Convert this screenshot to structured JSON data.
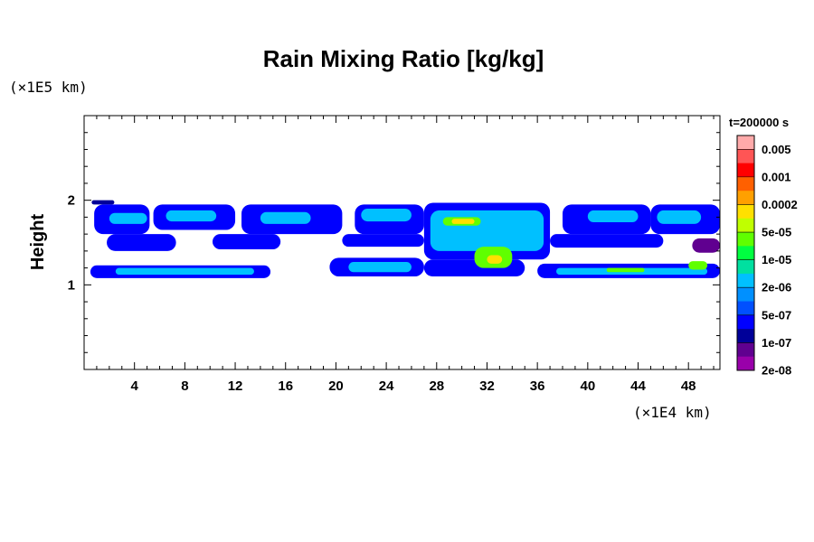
{
  "chart_data": {
    "type": "heatmap",
    "title": "Rain Mixing Ratio [kg/kg]",
    "ylabel": "Height",
    "x_unit": "(×1E4 km)",
    "y_unit": "(×1E5 km)",
    "time_label": "t=200000 s",
    "xlim": [
      0,
      50.5
    ],
    "ylim": [
      0,
      3
    ],
    "x_ticks": [
      {
        "value": 4,
        "label": "4"
      },
      {
        "value": 8,
        "label": "8"
      },
      {
        "value": 12,
        "label": "12"
      },
      {
        "value": 16,
        "label": "16"
      },
      {
        "value": 20,
        "label": "20"
      },
      {
        "value": 24,
        "label": "24"
      },
      {
        "value": 28,
        "label": "28"
      },
      {
        "value": 32,
        "label": "32"
      },
      {
        "value": 36,
        "label": "36"
      },
      {
        "value": 40,
        "label": "40"
      },
      {
        "value": 44,
        "label": "44"
      },
      {
        "value": 48,
        "label": "48"
      }
    ],
    "y_ticks": [
      {
        "value": 1,
        "label": "1"
      },
      {
        "value": 2,
        "label": "2"
      }
    ],
    "colorbar": {
      "labels": [
        "0.005",
        "0.001",
        "0.0002",
        "5e-05",
        "1e-05",
        "2e-06",
        "5e-07",
        "1e-07",
        "2e-08"
      ],
      "colors_top_to_bottom": [
        "#ffaaaa",
        "#ff5555",
        "#ff0000",
        "#ff6000",
        "#ffa000",
        "#ffe000",
        "#c0ff00",
        "#60ff00",
        "#00ff40",
        "#00e0a0",
        "#00c0ff",
        "#0090ff",
        "#0050ff",
        "#0000ff",
        "#000099",
        "#600090",
        "#9900aa"
      ]
    },
    "regions": [
      {
        "x0": 0.6,
        "x1": 2.4,
        "y0": 1.95,
        "y1": 2.0,
        "level": 2
      },
      {
        "x0": 0.8,
        "x1": 5.2,
        "y0": 1.6,
        "y1": 1.95,
        "level": 3
      },
      {
        "x0": 5.5,
        "x1": 12,
        "y0": 1.65,
        "y1": 1.95,
        "level": 3
      },
      {
        "x0": 12.5,
        "x1": 20.5,
        "y0": 1.6,
        "y1": 1.95,
        "level": 3
      },
      {
        "x0": 21.5,
        "x1": 27,
        "y0": 1.6,
        "y1": 1.95,
        "level": 3
      },
      {
        "x0": 27,
        "x1": 37,
        "y0": 1.3,
        "y1": 1.97,
        "level": 3
      },
      {
        "x0": 38,
        "x1": 45,
        "y0": 1.6,
        "y1": 1.95,
        "level": 3
      },
      {
        "x0": 45,
        "x1": 50.5,
        "y0": 1.6,
        "y1": 1.95,
        "level": 3
      },
      {
        "x0": 1.8,
        "x1": 7.3,
        "y0": 1.4,
        "y1": 1.6,
        "level": 3
      },
      {
        "x0": 10.2,
        "x1": 15.6,
        "y0": 1.42,
        "y1": 1.6,
        "level": 3
      },
      {
        "x0": 20.5,
        "x1": 27,
        "y0": 1.45,
        "y1": 1.6,
        "level": 3
      },
      {
        "x0": 37,
        "x1": 46,
        "y0": 1.44,
        "y1": 1.6,
        "level": 3
      },
      {
        "x0": 48.3,
        "x1": 50.5,
        "y0": 1.38,
        "y1": 1.55,
        "level": 1
      },
      {
        "x0": 0.5,
        "x1": 14.8,
        "y0": 1.08,
        "y1": 1.23,
        "level": 3
      },
      {
        "x0": 19.5,
        "x1": 27,
        "y0": 1.1,
        "y1": 1.32,
        "level": 3
      },
      {
        "x0": 27,
        "x1": 35,
        "y0": 1.1,
        "y1": 1.3,
        "level": 3
      },
      {
        "x0": 36,
        "x1": 50.5,
        "y0": 1.08,
        "y1": 1.25,
        "level": 3
      },
      {
        "x0": 2.0,
        "x1": 5.0,
        "y0": 1.72,
        "y1": 1.85,
        "level": 6
      },
      {
        "x0": 6.5,
        "x1": 10.5,
        "y0": 1.75,
        "y1": 1.88,
        "level": 6
      },
      {
        "x0": 14,
        "x1": 18,
        "y0": 1.72,
        "y1": 1.86,
        "level": 6
      },
      {
        "x0": 22,
        "x1": 26,
        "y0": 1.75,
        "y1": 1.9,
        "level": 6
      },
      {
        "x0": 27.5,
        "x1": 36.5,
        "y0": 1.4,
        "y1": 1.88,
        "level": 6
      },
      {
        "x0": 40,
        "x1": 44,
        "y0": 1.74,
        "y1": 1.88,
        "level": 6
      },
      {
        "x0": 45.5,
        "x1": 49,
        "y0": 1.72,
        "y1": 1.88,
        "level": 6
      },
      {
        "x0": 2.5,
        "x1": 13.5,
        "y0": 1.12,
        "y1": 1.2,
        "level": 6
      },
      {
        "x0": 21,
        "x1": 26,
        "y0": 1.15,
        "y1": 1.27,
        "level": 6
      },
      {
        "x0": 37.5,
        "x1": 49.5,
        "y0": 1.12,
        "y1": 1.2,
        "level": 6
      },
      {
        "x0": 28.5,
        "x1": 31.5,
        "y0": 1.7,
        "y1": 1.8,
        "level": 9
      },
      {
        "x0": 31,
        "x1": 34,
        "y0": 1.2,
        "y1": 1.45,
        "level": 9
      },
      {
        "x0": 41.5,
        "x1": 44.5,
        "y0": 1.15,
        "y1": 1.2,
        "level": 9
      },
      {
        "x0": 48,
        "x1": 49.5,
        "y0": 1.18,
        "y1": 1.28,
        "level": 9
      },
      {
        "x0": 29.2,
        "x1": 31.0,
        "y0": 1.72,
        "y1": 1.78,
        "level": 11
      },
      {
        "x0": 32,
        "x1": 33.2,
        "y0": 1.25,
        "y1": 1.35,
        "level": 11
      }
    ]
  }
}
